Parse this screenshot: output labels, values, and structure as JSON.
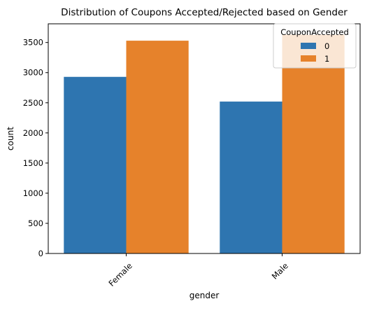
{
  "chart_data": {
    "type": "bar",
    "title": "Distribution of Coupons Accepted/Rejected based on Gender",
    "xlabel": "gender",
    "ylabel": "count",
    "categories": [
      "Female",
      "Male"
    ],
    "series": [
      {
        "name": "0",
        "values": [
          2930,
          2520
        ],
        "color": "#2e75b0"
      },
      {
        "name": "1",
        "values": [
          3530,
          3630
        ],
        "color": "#e6822b"
      }
    ],
    "ylim": [
      0,
      3810
    ],
    "yticks": [
      0,
      500,
      1000,
      1500,
      2000,
      2500,
      3000,
      3500
    ],
    "grid": false,
    "legend": {
      "title": "CouponAccepted",
      "placement": "top-right"
    }
  }
}
